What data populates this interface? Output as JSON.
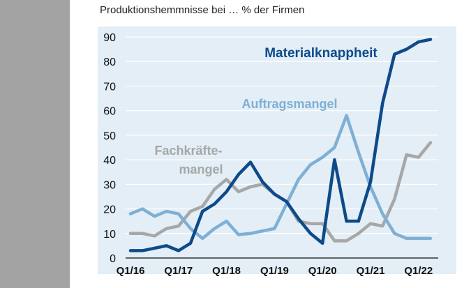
{
  "chart_data": {
    "type": "line",
    "title": "Produktionshemmnisse bei … % der Firmen",
    "xlabel": "",
    "ylabel": "",
    "ylim": [
      0,
      90
    ],
    "yticks": [
      0,
      10,
      20,
      30,
      40,
      50,
      60,
      70,
      80,
      90
    ],
    "grid": true,
    "x": [
      "Q1/16",
      "Q2/16",
      "Q3/16",
      "Q4/16",
      "Q1/17",
      "Q2/17",
      "Q3/17",
      "Q4/17",
      "Q1/18",
      "Q2/18",
      "Q3/18",
      "Q4/18",
      "Q1/19",
      "Q2/19",
      "Q3/19",
      "Q4/19",
      "Q1/20",
      "Q2/20",
      "Q3/20",
      "Q4/20",
      "Q1/21",
      "Q2/21",
      "Q3/21",
      "Q4/21",
      "Q1/22",
      "Q2/22"
    ],
    "xtick_labels": [
      "Q1/16",
      "Q1/17",
      "Q1/18",
      "Q1/19",
      "Q1/20",
      "Q1/21",
      "Q1/22"
    ],
    "series": [
      {
        "name": "Materialknappheit",
        "color": "#0d4a8a",
        "values": [
          3,
          3,
          4,
          5,
          3,
          6,
          19,
          22,
          27,
          34,
          39,
          31,
          26,
          23,
          16,
          10,
          6,
          40,
          15,
          15,
          31,
          63,
          83,
          85,
          88,
          89
        ]
      },
      {
        "name": "Auftragsmangel",
        "color": "#7eb0d5",
        "values": [
          18,
          20,
          17,
          19,
          18,
          12,
          8,
          12,
          15,
          9.5,
          10,
          11,
          12,
          22,
          32,
          38,
          41,
          45,
          58,
          43,
          29,
          18,
          10,
          8,
          8,
          8
        ]
      },
      {
        "name": "Fachkräfte-mangel",
        "color": "#a7a7a7",
        "values": [
          10,
          10,
          9,
          12,
          13,
          19,
          21,
          28,
          32,
          27,
          29,
          30,
          26,
          23,
          15,
          14,
          14,
          7,
          7,
          10,
          14,
          13,
          24,
          42,
          41,
          47
        ]
      }
    ],
    "series_label_lines": {
      "Materialknappheit": [
        "Materialknappheit"
      ],
      "Auftragsmangel": [
        "Auftragsmangel"
      ],
      "Fachkräfte-mangel": [
        "Fachkräfte-",
        "mangel"
      ]
    },
    "colors": {
      "panel": "#e3eef6",
      "side_bar": "#a3a3a3"
    }
  }
}
